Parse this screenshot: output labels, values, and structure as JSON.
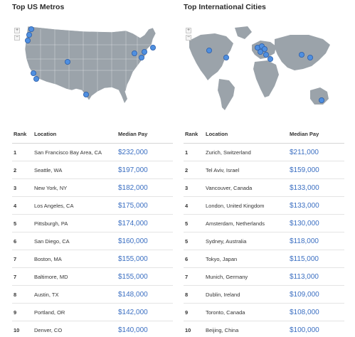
{
  "us": {
    "title": "Top US Metros",
    "headers": {
      "rank": "Rank",
      "location": "Location",
      "pay": "Median Pay"
    },
    "rows": [
      {
        "rank": "1",
        "location": "San Francisco Bay Area, CA",
        "pay": "$232,000"
      },
      {
        "rank": "2",
        "location": "Seattle, WA",
        "pay": "$197,000"
      },
      {
        "rank": "3",
        "location": "New York, NY",
        "pay": "$182,000"
      },
      {
        "rank": "4",
        "location": "Los Angeles, CA",
        "pay": "$175,000"
      },
      {
        "rank": "5",
        "location": "Pittsburgh, PA",
        "pay": "$174,000"
      },
      {
        "rank": "6",
        "location": "San Diego, CA",
        "pay": "$160,000"
      },
      {
        "rank": "7",
        "location": "Boston, MA",
        "pay": "$155,000"
      },
      {
        "rank": "7",
        "location": "Baltimore, MD",
        "pay": "$155,000"
      },
      {
        "rank": "8",
        "location": "Austin, TX",
        "pay": "$148,000"
      },
      {
        "rank": "9",
        "location": "Portland, OR",
        "pay": "$142,000"
      },
      {
        "rank": "10",
        "location": "Denver, CO",
        "pay": "$140,000"
      }
    ]
  },
  "intl": {
    "title": "Top International Cities",
    "headers": {
      "rank": "Rank",
      "location": "Location",
      "pay": "Median Pay"
    },
    "rows": [
      {
        "rank": "1",
        "location": "Zurich, Switzerland",
        "pay": "$211,000"
      },
      {
        "rank": "2",
        "location": "Tel Aviv, Israel",
        "pay": "$159,000"
      },
      {
        "rank": "3",
        "location": "Vancouver, Canada",
        "pay": "$133,000"
      },
      {
        "rank": "4",
        "location": "London, United Kingdom",
        "pay": "$133,000"
      },
      {
        "rank": "5",
        "location": "Amsterdam, Netherlands",
        "pay": "$130,000"
      },
      {
        "rank": "5",
        "location": "Sydney, Australia",
        "pay": "$118,000"
      },
      {
        "rank": "6",
        "location": "Tokyo, Japan",
        "pay": "$115,000"
      },
      {
        "rank": "7",
        "location": "Munich, Germany",
        "pay": "$113,000"
      },
      {
        "rank": "8",
        "location": "Dublin, Ireland",
        "pay": "$109,000"
      },
      {
        "rank": "9",
        "location": "Toronto, Canada",
        "pay": "$108,000"
      },
      {
        "rank": "10",
        "location": "Beijing, China",
        "pay": "$100,000"
      }
    ]
  },
  "map_controls": {
    "zoom_in": "+",
    "zoom_out": "−"
  },
  "colors": {
    "land": "#9ba3aa",
    "marker": "#4f8fe0",
    "marker_stroke": "#2c5ea8",
    "pay": "#3b6fc2"
  },
  "icons": {
    "zoom_in": "plus-icon",
    "zoom_out": "minus-icon",
    "marker": "map-pin-dot-icon"
  }
}
